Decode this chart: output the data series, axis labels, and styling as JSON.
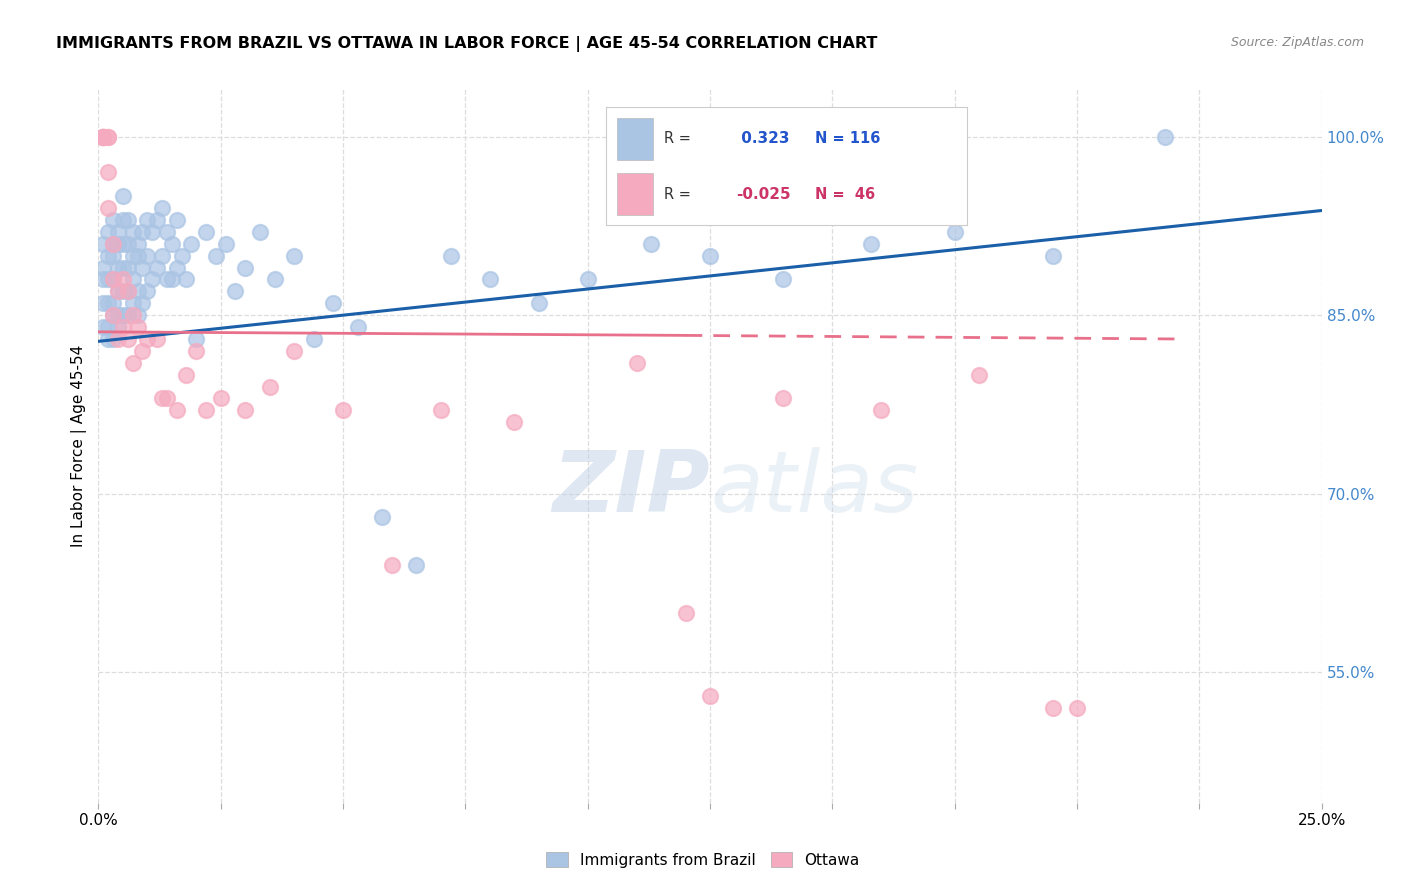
{
  "title": "IMMIGRANTS FROM BRAZIL VS OTTAWA IN LABOR FORCE | AGE 45-54 CORRELATION CHART",
  "source": "Source: ZipAtlas.com",
  "ylabel": "In Labor Force | Age 45-54",
  "xlim": [
    0.0,
    0.25
  ],
  "ylim": [
    0.44,
    1.04
  ],
  "yticks": [
    0.55,
    0.7,
    0.85,
    1.0
  ],
  "ytick_labels": [
    "55.0%",
    "70.0%",
    "85.0%",
    "100.0%"
  ],
  "xticks": [
    0.0,
    0.025,
    0.05,
    0.075,
    0.1,
    0.125,
    0.15,
    0.175,
    0.2,
    0.225,
    0.25
  ],
  "xtick_labels_show": [
    "0.0%",
    "",
    "",
    "",
    "",
    "",
    "",
    "",
    "",
    "",
    "25.0%"
  ],
  "watermark_zip": "ZIP",
  "watermark_atlas": "atlas",
  "legend_blue_R": "0.323",
  "legend_blue_N": "116",
  "legend_pink_R": "-0.025",
  "legend_pink_N": "46",
  "blue_color": "#aac4e4",
  "pink_color": "#f5aabf",
  "blue_line_color": "#1a5fa8",
  "pink_line_color": "#e8708a",
  "scatter_size": 120,
  "blue_x": [
    0.001,
    0.001,
    0.001,
    0.001,
    0.001,
    0.002,
    0.002,
    0.002,
    0.002,
    0.002,
    0.002,
    0.003,
    0.003,
    0.003,
    0.003,
    0.003,
    0.003,
    0.003,
    0.004,
    0.004,
    0.004,
    0.004,
    0.004,
    0.004,
    0.005,
    0.005,
    0.005,
    0.005,
    0.005,
    0.005,
    0.006,
    0.006,
    0.006,
    0.006,
    0.006,
    0.007,
    0.007,
    0.007,
    0.007,
    0.008,
    0.008,
    0.008,
    0.008,
    0.009,
    0.009,
    0.009,
    0.01,
    0.01,
    0.01,
    0.011,
    0.011,
    0.012,
    0.012,
    0.013,
    0.013,
    0.014,
    0.014,
    0.015,
    0.015,
    0.016,
    0.016,
    0.017,
    0.018,
    0.019,
    0.02,
    0.022,
    0.024,
    0.026,
    0.028,
    0.03,
    0.033,
    0.036,
    0.04,
    0.044,
    0.048,
    0.053,
    0.058,
    0.065,
    0.072,
    0.08,
    0.09,
    0.1,
    0.113,
    0.125,
    0.14,
    0.158,
    0.175,
    0.195,
    0.218
  ],
  "blue_y": [
    0.88,
    0.86,
    0.84,
    0.91,
    0.89,
    0.92,
    0.9,
    0.88,
    0.86,
    0.84,
    0.83,
    0.93,
    0.91,
    0.9,
    0.88,
    0.86,
    0.85,
    0.83,
    0.92,
    0.91,
    0.89,
    0.87,
    0.85,
    0.84,
    0.95,
    0.93,
    0.91,
    0.89,
    0.87,
    0.85,
    0.93,
    0.91,
    0.89,
    0.87,
    0.85,
    0.92,
    0.9,
    0.88,
    0.86,
    0.91,
    0.9,
    0.87,
    0.85,
    0.92,
    0.89,
    0.86,
    0.93,
    0.9,
    0.87,
    0.92,
    0.88,
    0.93,
    0.89,
    0.94,
    0.9,
    0.92,
    0.88,
    0.91,
    0.88,
    0.93,
    0.89,
    0.9,
    0.88,
    0.91,
    0.83,
    0.92,
    0.9,
    0.91,
    0.87,
    0.89,
    0.92,
    0.88,
    0.9,
    0.83,
    0.86,
    0.84,
    0.68,
    0.64,
    0.9,
    0.88,
    0.86,
    0.88,
    0.91,
    0.9,
    0.88,
    0.91,
    0.92,
    0.9,
    1.0
  ],
  "pink_x": [
    0.001,
    0.001,
    0.001,
    0.001,
    0.001,
    0.002,
    0.002,
    0.002,
    0.002,
    0.003,
    0.003,
    0.003,
    0.004,
    0.004,
    0.005,
    0.005,
    0.006,
    0.006,
    0.007,
    0.007,
    0.008,
    0.009,
    0.01,
    0.012,
    0.013,
    0.014,
    0.016,
    0.018,
    0.02,
    0.022,
    0.025,
    0.03,
    0.035,
    0.04,
    0.05,
    0.06,
    0.07,
    0.085,
    0.11,
    0.12,
    0.14,
    0.16,
    0.18,
    0.2,
    0.125,
    0.195
  ],
  "pink_y": [
    1.0,
    1.0,
    1.0,
    1.0,
    1.0,
    1.0,
    1.0,
    0.97,
    0.94,
    0.91,
    0.88,
    0.85,
    0.87,
    0.83,
    0.88,
    0.84,
    0.87,
    0.83,
    0.85,
    0.81,
    0.84,
    0.82,
    0.83,
    0.83,
    0.78,
    0.78,
    0.77,
    0.8,
    0.82,
    0.77,
    0.78,
    0.77,
    0.79,
    0.82,
    0.77,
    0.64,
    0.77,
    0.76,
    0.81,
    0.6,
    0.78,
    0.77,
    0.8,
    0.52,
    0.53,
    0.52
  ],
  "blue_trend_x": [
    0.0,
    0.25
  ],
  "blue_trend_y": [
    0.828,
    0.938
  ],
  "pink_trend_x": [
    0.0,
    0.22
  ],
  "pink_trend_y": [
    0.836,
    0.83
  ]
}
